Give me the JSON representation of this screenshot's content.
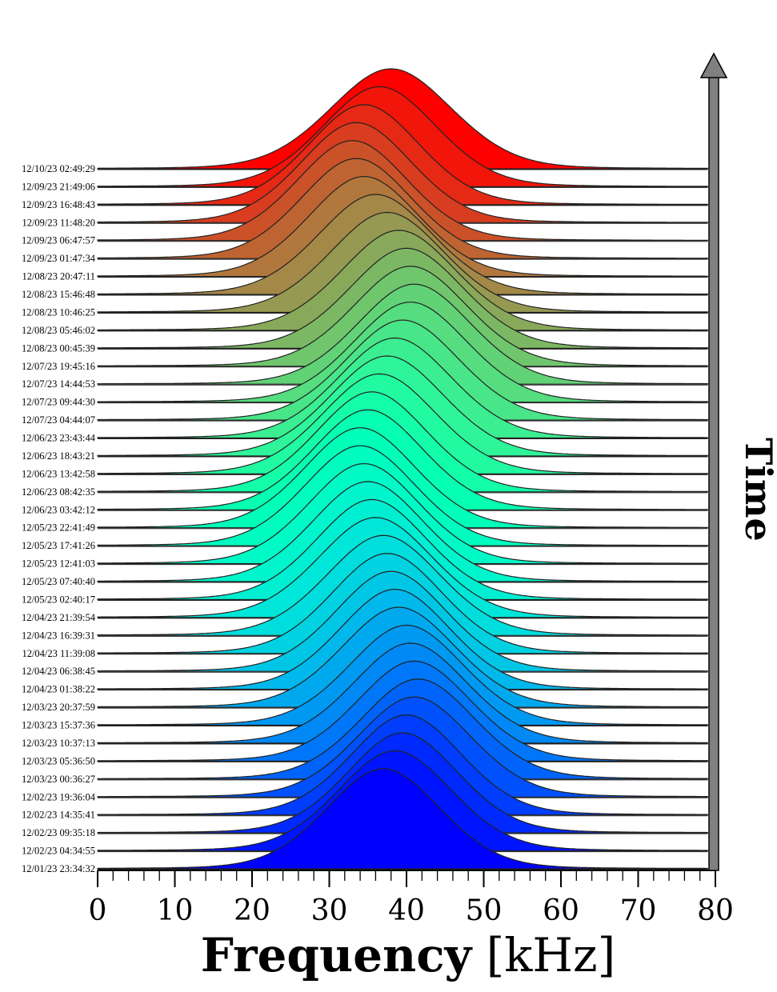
{
  "chart_data": {
    "type": "area",
    "style": "ridgeline",
    "colormap": "rainbow",
    "xlabel_bold": "Frequency",
    "xlabel_unit": "[kHz]",
    "time_axis_label": "Time",
    "xlim": [
      0,
      80
    ],
    "x_ticks": [
      "0",
      "10",
      "20",
      "30",
      "40",
      "50",
      "60",
      "70",
      "80"
    ],
    "grid": false,
    "legend": "none",
    "series": [
      {
        "name": "12/01/23 23:34:32",
        "peak_khz": 37.0,
        "width_khz": 7.5
      },
      {
        "name": "12/02/23 04:34:55",
        "peak_khz": 38.5,
        "width_khz": 7.5
      },
      {
        "name": "12/02/23 09:35:18",
        "peak_khz": 39.5,
        "width_khz": 7.3
      },
      {
        "name": "12/02/23 14:35:41",
        "peak_khz": 40.0,
        "width_khz": 7.3
      },
      {
        "name": "12/02/23 19:36:04",
        "peak_khz": 41.0,
        "width_khz": 7.5
      },
      {
        "name": "12/03/23 00:36:27",
        "peak_khz": 41.5,
        "width_khz": 7.5
      },
      {
        "name": "12/03/23 05:36:50",
        "peak_khz": 41.0,
        "width_khz": 7.5
      },
      {
        "name": "12/03/23 10:37:13",
        "peak_khz": 40.5,
        "width_khz": 7.5
      },
      {
        "name": "12/03/23 15:37:36",
        "peak_khz": 40.0,
        "width_khz": 7.5
      },
      {
        "name": "12/03/23 20:37:59",
        "peak_khz": 39.0,
        "width_khz": 7.5
      },
      {
        "name": "12/04/23 01:38:22",
        "peak_khz": 38.5,
        "width_khz": 7.3
      },
      {
        "name": "12/04/23 06:38:45",
        "peak_khz": 38.0,
        "width_khz": 7.3
      },
      {
        "name": "12/04/23 11:39:08",
        "peak_khz": 37.5,
        "width_khz": 7.3
      },
      {
        "name": "12/04/23 16:39:31",
        "peak_khz": 37.0,
        "width_khz": 7.5
      },
      {
        "name": "12/04/23 21:39:54",
        "peak_khz": 36.0,
        "width_khz": 7.5
      },
      {
        "name": "12/05/23 02:40:17",
        "peak_khz": 35.5,
        "width_khz": 7.3
      },
      {
        "name": "12/05/23 07:40:40",
        "peak_khz": 35.0,
        "width_khz": 7.3
      },
      {
        "name": "12/05/23 12:41:03",
        "peak_khz": 34.5,
        "width_khz": 7.3
      },
      {
        "name": "12/05/23 17:41:26",
        "peak_khz": 34.0,
        "width_khz": 7.3
      },
      {
        "name": "12/05/23 22:41:49",
        "peak_khz": 34.0,
        "width_khz": 7.3
      },
      {
        "name": "12/06/23 03:42:12",
        "peak_khz": 35.0,
        "width_khz": 7.3
      },
      {
        "name": "12/06/23 08:42:35",
        "peak_khz": 35.5,
        "width_khz": 7.3
      },
      {
        "name": "12/06/23 13:42:58",
        "peak_khz": 36.5,
        "width_khz": 7.5
      },
      {
        "name": "12/06/23 18:43:21",
        "peak_khz": 37.5,
        "width_khz": 7.5
      },
      {
        "name": "12/06/23 23:43:44",
        "peak_khz": 38.5,
        "width_khz": 7.5
      },
      {
        "name": "12/07/23 04:44:07",
        "peak_khz": 39.5,
        "width_khz": 7.5
      },
      {
        "name": "12/07/23 09:44:30",
        "peak_khz": 40.5,
        "width_khz": 7.5
      },
      {
        "name": "12/07/23 14:44:53",
        "peak_khz": 41.0,
        "width_khz": 7.5
      },
      {
        "name": "12/07/23 19:45:16",
        "peak_khz": 40.5,
        "width_khz": 7.5
      },
      {
        "name": "12/08/23 00:45:39",
        "peak_khz": 40.0,
        "width_khz": 7.5
      },
      {
        "name": "12/08/23 05:46:02",
        "peak_khz": 39.0,
        "width_khz": 7.5
      },
      {
        "name": "12/08/23 10:46:25",
        "peak_khz": 37.5,
        "width_khz": 7.5
      },
      {
        "name": "12/08/23 15:46:48",
        "peak_khz": 36.0,
        "width_khz": 7.5
      },
      {
        "name": "12/08/23 20:47:11",
        "peak_khz": 34.5,
        "width_khz": 7.3
      },
      {
        "name": "12/09/23 01:47:34",
        "peak_khz": 33.5,
        "width_khz": 7.3
      },
      {
        "name": "12/09/23 06:47:57",
        "peak_khz": 33.0,
        "width_khz": 7.3
      },
      {
        "name": "12/09/23 11:48:20",
        "peak_khz": 33.5,
        "width_khz": 7.3
      },
      {
        "name": "12/09/23 16:48:43",
        "peak_khz": 34.5,
        "width_khz": 7.3
      },
      {
        "name": "12/09/23 21:49:06",
        "peak_khz": 36.5,
        "width_khz": 7.5
      },
      {
        "name": "12/10/23 02:49:29",
        "peak_khz": 38.0,
        "width_khz": 8.0
      }
    ]
  }
}
